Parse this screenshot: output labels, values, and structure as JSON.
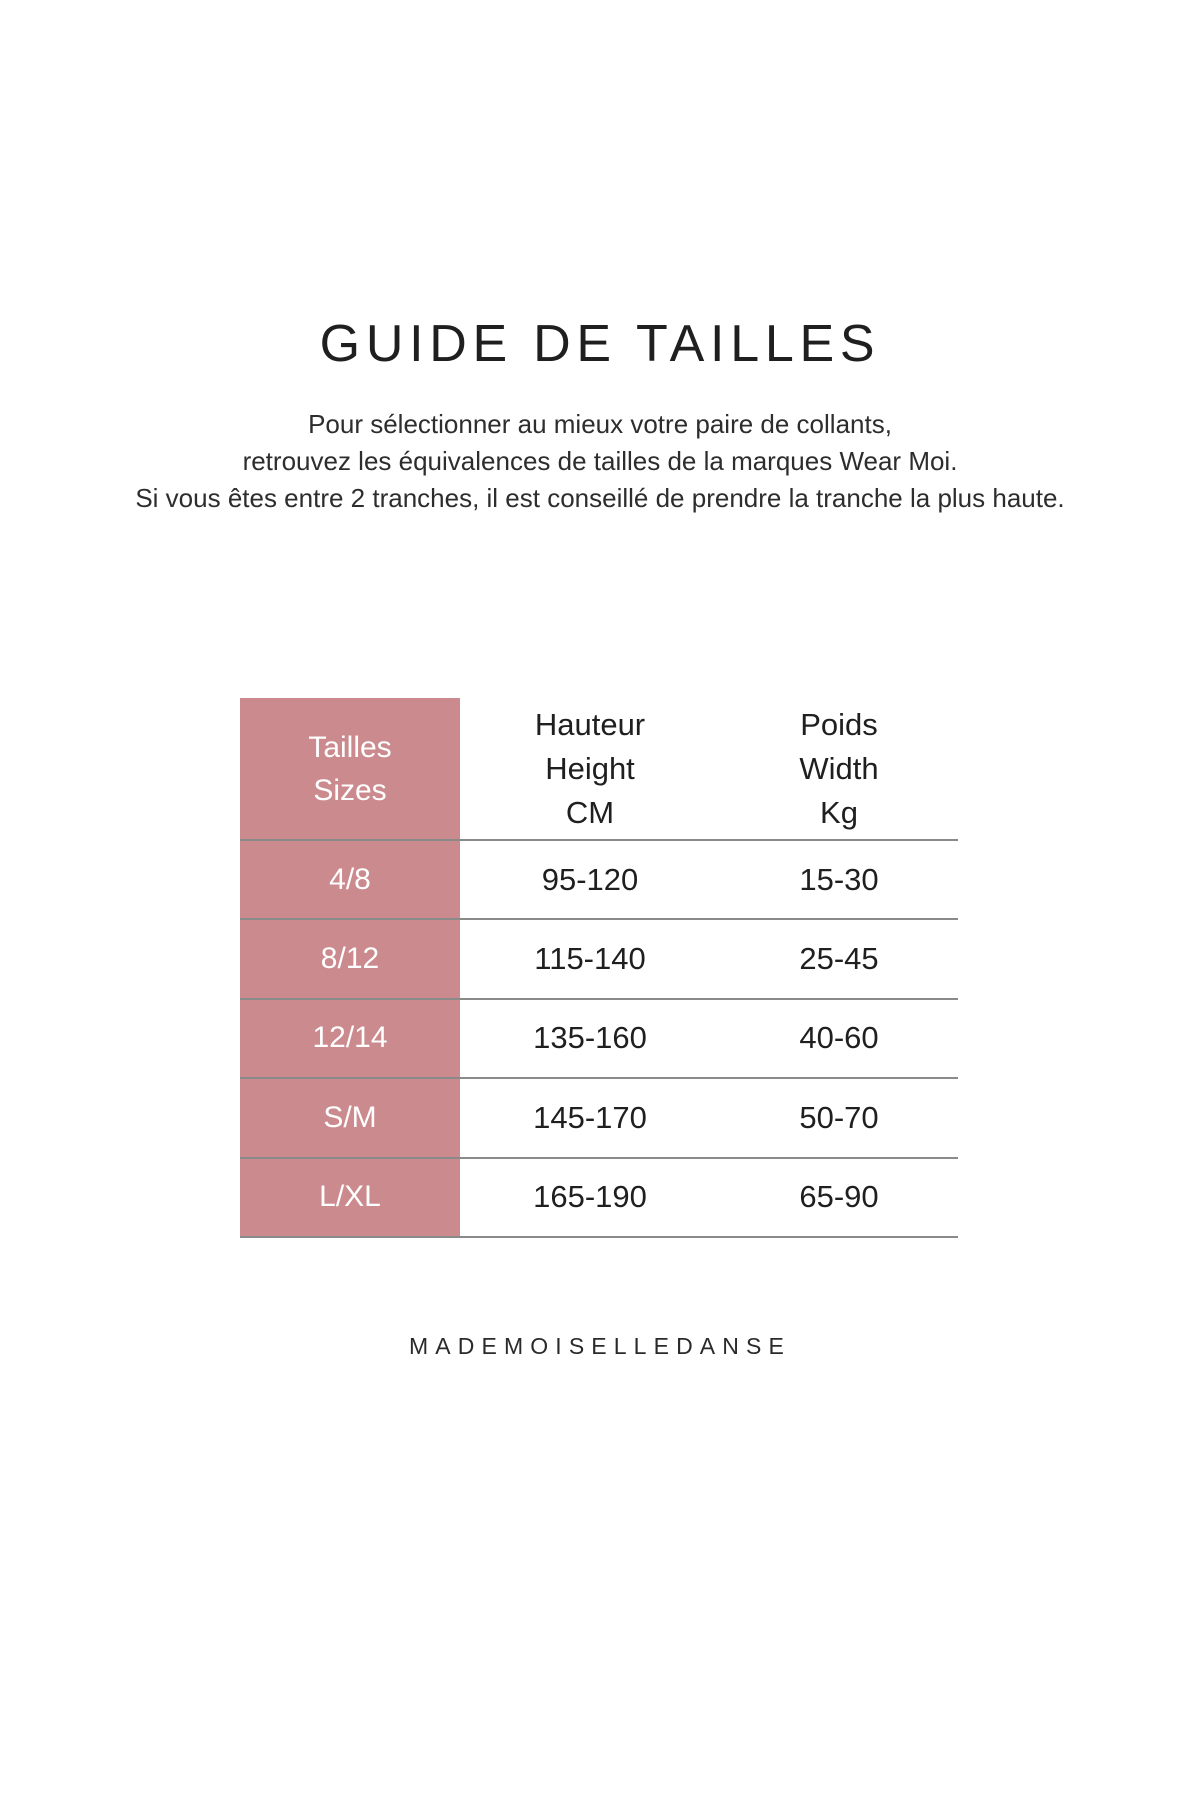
{
  "page": {
    "title": "GUIDE DE TAILLES",
    "intro_lines": [
      "Pour sélectionner au mieux votre paire de collants,",
      "retrouvez les équivalences de tailles de la marques Wear Moi.",
      "Si vous êtes entre 2 tranches, il est conseillé de prendre la tranche la plus haute."
    ],
    "footer_brand": "MADEMOISELLEDANSE"
  },
  "table": {
    "header": {
      "sizes_col": [
        "Tailles",
        "Sizes"
      ],
      "height_col": [
        "Hauteur",
        "Height",
        "CM"
      ],
      "weight_col": [
        "Poids",
        "Width",
        "Kg"
      ]
    },
    "rows": [
      {
        "size": "4/8",
        "height_cm": "95-120",
        "weight_kg": "15-30"
      },
      {
        "size": "8/12",
        "height_cm": "115-140",
        "weight_kg": "25-45"
      },
      {
        "size": "12/14",
        "height_cm": "135-160",
        "weight_kg": "40-60"
      },
      {
        "size": "S/M",
        "height_cm": "145-170",
        "weight_kg": "50-70"
      },
      {
        "size": "L/XL",
        "height_cm": "165-190",
        "weight_kg": "65-90"
      }
    ]
  },
  "colors": {
    "accent_pink": "#cb8a8d",
    "divider_gray": "#8a8a8a",
    "text_ink": "#222222",
    "header_text_white": "#ffffff",
    "background": "#ffffff"
  }
}
